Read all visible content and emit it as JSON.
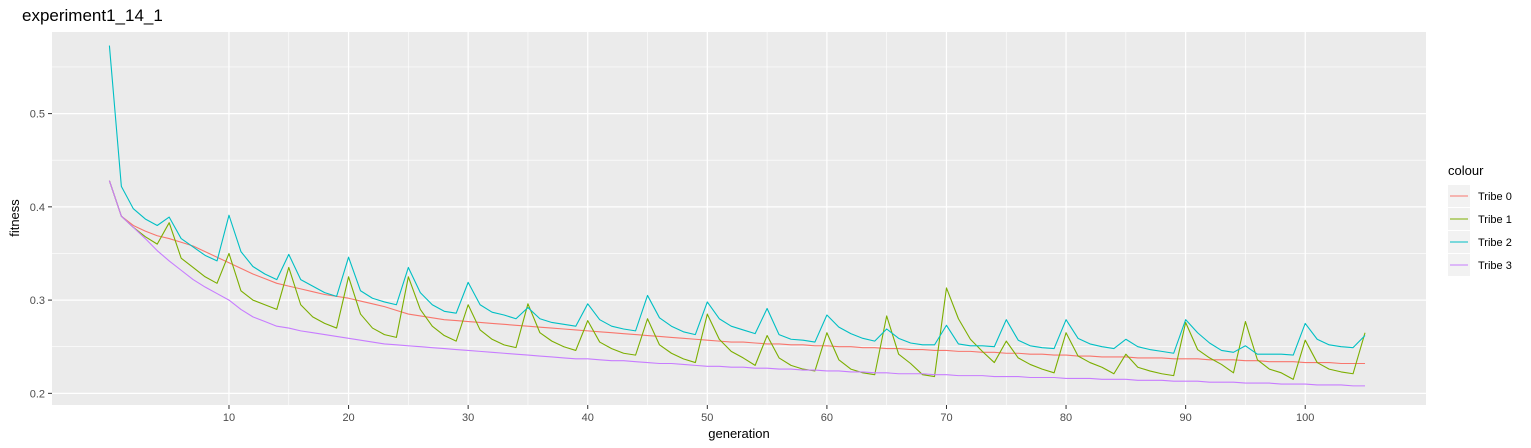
{
  "chart_data": {
    "type": "line",
    "title": "experiment1_14_1",
    "xlabel": "generation",
    "ylabel": "fitness",
    "xlim": [
      -4.8,
      110.1
    ],
    "ylim": [
      0.1875,
      0.5875
    ],
    "x_ticks": [
      10,
      20,
      30,
      40,
      50,
      60,
      70,
      80,
      90,
      100
    ],
    "y_ticks": [
      0.2,
      0.3,
      0.4,
      0.5
    ],
    "grid": true,
    "legend_title": "colour",
    "legend_position": "right",
    "x": [
      0,
      1,
      2,
      3,
      4,
      5,
      6,
      7,
      8,
      9,
      10,
      11,
      12,
      13,
      14,
      15,
      16,
      17,
      18,
      19,
      20,
      21,
      22,
      23,
      24,
      25,
      26,
      27,
      28,
      29,
      30,
      31,
      32,
      33,
      34,
      35,
      36,
      37,
      38,
      39,
      40,
      41,
      42,
      43,
      44,
      45,
      46,
      47,
      48,
      49,
      50,
      51,
      52,
      53,
      54,
      55,
      56,
      57,
      58,
      59,
      60,
      61,
      62,
      63,
      64,
      65,
      66,
      67,
      68,
      69,
      70,
      71,
      72,
      73,
      74,
      75,
      76,
      77,
      78,
      79,
      80,
      81,
      82,
      83,
      84,
      85,
      86,
      87,
      88,
      89,
      90,
      91,
      92,
      93,
      94,
      95,
      96,
      97,
      98,
      99,
      100,
      101,
      102,
      103,
      104,
      105
    ],
    "series": [
      {
        "name": "Tribe 0",
        "color": "#F8766D",
        "values": [
          0.428,
          0.39,
          0.38,
          0.374,
          0.369,
          0.366,
          0.362,
          0.358,
          0.352,
          0.346,
          0.34,
          0.334,
          0.328,
          0.323,
          0.318,
          0.315,
          0.312,
          0.309,
          0.306,
          0.304,
          0.302,
          0.299,
          0.296,
          0.293,
          0.289,
          0.285,
          0.283,
          0.281,
          0.279,
          0.278,
          0.277,
          0.276,
          0.275,
          0.274,
          0.273,
          0.272,
          0.271,
          0.27,
          0.269,
          0.268,
          0.267,
          0.266,
          0.265,
          0.264,
          0.263,
          0.262,
          0.261,
          0.26,
          0.259,
          0.258,
          0.257,
          0.256,
          0.255,
          0.255,
          0.254,
          0.253,
          0.253,
          0.252,
          0.252,
          0.251,
          0.251,
          0.25,
          0.25,
          0.249,
          0.249,
          0.248,
          0.248,
          0.247,
          0.247,
          0.246,
          0.246,
          0.245,
          0.245,
          0.244,
          0.244,
          0.243,
          0.243,
          0.242,
          0.242,
          0.241,
          0.241,
          0.24,
          0.24,
          0.239,
          0.239,
          0.239,
          0.238,
          0.238,
          0.238,
          0.237,
          0.237,
          0.237,
          0.236,
          0.236,
          0.236,
          0.235,
          0.235,
          0.234,
          0.234,
          0.234,
          0.233,
          0.233,
          0.233,
          0.232,
          0.232,
          0.232
        ]
      },
      {
        "name": "Tribe 1",
        "color": "#7CAE00",
        "values": [
          0.428,
          0.39,
          0.378,
          0.368,
          0.36,
          0.383,
          0.345,
          0.335,
          0.325,
          0.318,
          0.35,
          0.31,
          0.3,
          0.295,
          0.29,
          0.335,
          0.295,
          0.282,
          0.275,
          0.27,
          0.325,
          0.285,
          0.27,
          0.263,
          0.26,
          0.325,
          0.29,
          0.272,
          0.262,
          0.256,
          0.295,
          0.268,
          0.258,
          0.252,
          0.249,
          0.296,
          0.265,
          0.256,
          0.25,
          0.246,
          0.278,
          0.255,
          0.248,
          0.243,
          0.241,
          0.28,
          0.252,
          0.243,
          0.237,
          0.233,
          0.285,
          0.258,
          0.245,
          0.238,
          0.23,
          0.262,
          0.238,
          0.23,
          0.226,
          0.224,
          0.265,
          0.236,
          0.226,
          0.222,
          0.22,
          0.283,
          0.242,
          0.232,
          0.22,
          0.218,
          0.313,
          0.28,
          0.258,
          0.245,
          0.233,
          0.256,
          0.238,
          0.231,
          0.226,
          0.222,
          0.265,
          0.24,
          0.233,
          0.228,
          0.221,
          0.242,
          0.228,
          0.224,
          0.221,
          0.219,
          0.276,
          0.247,
          0.238,
          0.231,
          0.222,
          0.277,
          0.236,
          0.226,
          0.222,
          0.215,
          0.257,
          0.233,
          0.226,
          0.223,
          0.221,
          0.265
        ]
      },
      {
        "name": "Tribe 2",
        "color": "#00BFC4",
        "values": [
          0.573,
          0.422,
          0.398,
          0.387,
          0.38,
          0.389,
          0.366,
          0.357,
          0.348,
          0.342,
          0.391,
          0.352,
          0.336,
          0.328,
          0.322,
          0.349,
          0.322,
          0.315,
          0.308,
          0.304,
          0.346,
          0.31,
          0.302,
          0.298,
          0.295,
          0.335,
          0.308,
          0.295,
          0.288,
          0.286,
          0.319,
          0.295,
          0.287,
          0.284,
          0.28,
          0.292,
          0.28,
          0.276,
          0.274,
          0.272,
          0.296,
          0.279,
          0.272,
          0.269,
          0.267,
          0.305,
          0.281,
          0.272,
          0.266,
          0.263,
          0.298,
          0.28,
          0.272,
          0.268,
          0.264,
          0.291,
          0.263,
          0.258,
          0.257,
          0.255,
          0.284,
          0.271,
          0.264,
          0.259,
          0.256,
          0.269,
          0.259,
          0.254,
          0.252,
          0.252,
          0.273,
          0.253,
          0.251,
          0.251,
          0.25,
          0.279,
          0.257,
          0.251,
          0.249,
          0.248,
          0.279,
          0.259,
          0.253,
          0.25,
          0.248,
          0.258,
          0.25,
          0.247,
          0.245,
          0.243,
          0.279,
          0.265,
          0.254,
          0.246,
          0.244,
          0.251,
          0.242,
          0.242,
          0.242,
          0.241,
          0.275,
          0.258,
          0.252,
          0.25,
          0.249,
          0.262
        ]
      },
      {
        "name": "Tribe 3",
        "color": "#C77CFF",
        "values": [
          0.428,
          0.39,
          0.378,
          0.366,
          0.353,
          0.342,
          0.332,
          0.322,
          0.314,
          0.307,
          0.3,
          0.29,
          0.282,
          0.277,
          0.272,
          0.27,
          0.267,
          0.265,
          0.263,
          0.261,
          0.259,
          0.257,
          0.255,
          0.253,
          0.252,
          0.251,
          0.25,
          0.249,
          0.248,
          0.247,
          0.246,
          0.245,
          0.244,
          0.243,
          0.242,
          0.241,
          0.24,
          0.239,
          0.238,
          0.237,
          0.237,
          0.236,
          0.235,
          0.235,
          0.234,
          0.233,
          0.232,
          0.232,
          0.231,
          0.23,
          0.229,
          0.229,
          0.228,
          0.228,
          0.227,
          0.227,
          0.226,
          0.226,
          0.225,
          0.225,
          0.224,
          0.224,
          0.223,
          0.223,
          0.222,
          0.222,
          0.221,
          0.221,
          0.221,
          0.22,
          0.22,
          0.219,
          0.219,
          0.219,
          0.218,
          0.218,
          0.218,
          0.217,
          0.217,
          0.217,
          0.216,
          0.216,
          0.216,
          0.215,
          0.215,
          0.215,
          0.214,
          0.214,
          0.214,
          0.213,
          0.213,
          0.213,
          0.212,
          0.212,
          0.212,
          0.211,
          0.211,
          0.211,
          0.21,
          0.21,
          0.21,
          0.209,
          0.209,
          0.209,
          0.208,
          0.208
        ]
      }
    ]
  }
}
